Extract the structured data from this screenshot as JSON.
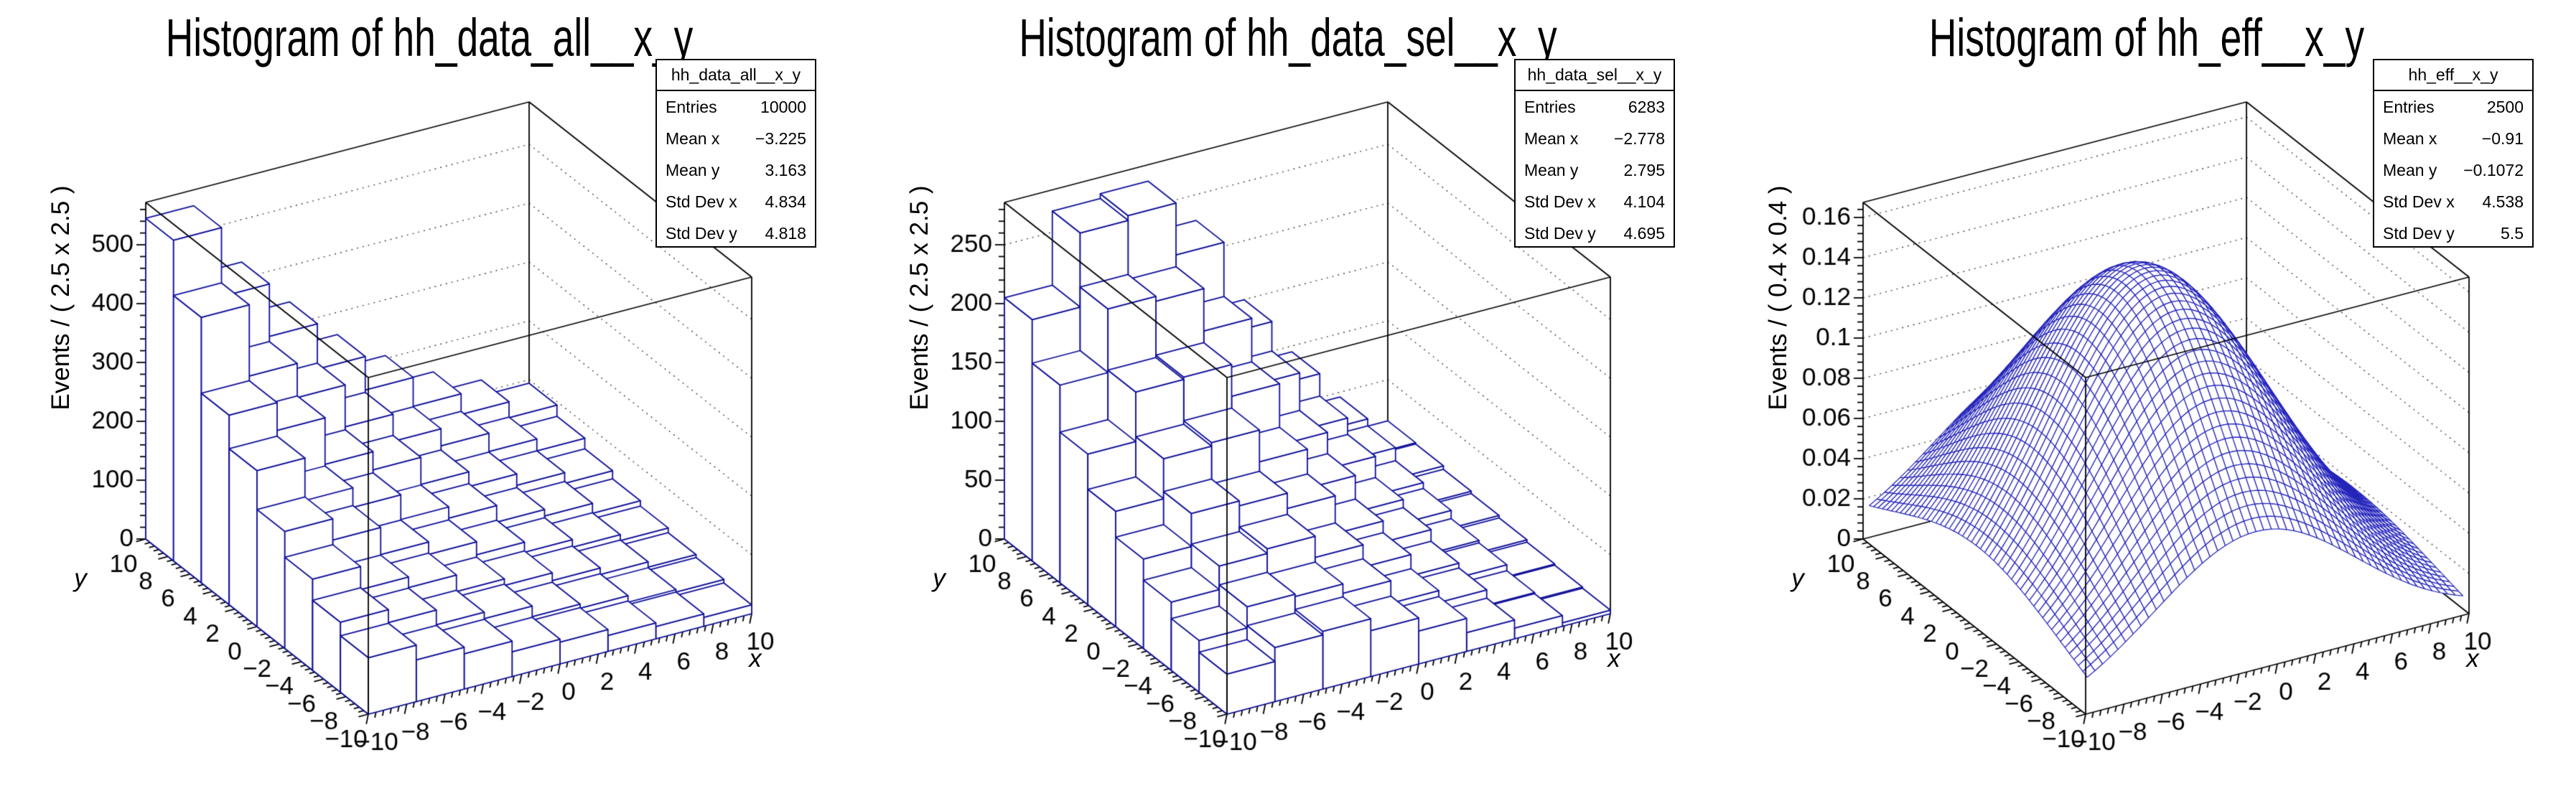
{
  "colors": {
    "bar_line": "#10109a",
    "mesh_line": "#2323bb",
    "frame": "#000000",
    "grid_dotted": "#444444",
    "text": "#000000",
    "background": "#ffffff"
  },
  "chart_data": [
    {
      "type": "lego3d",
      "title": "Histogram of hh_data_all__x_y",
      "stats": {
        "name": "hh_data_all__x_y",
        "rows": [
          {
            "label": "Entries",
            "value": "10000"
          },
          {
            "label": "Mean x",
            "value": "−3.225"
          },
          {
            "label": "Mean y",
            "value": "3.163"
          },
          {
            "label": "Std Dev x",
            "value": "4.834"
          },
          {
            "label": "Std Dev y",
            "value": "4.818"
          }
        ]
      },
      "x_axis": {
        "title": "x",
        "min": -10,
        "max": 10,
        "tick_values": [
          -10,
          -8,
          -6,
          -4,
          -2,
          0,
          2,
          4,
          6,
          8,
          10
        ],
        "tick_labels": [
          "−10",
          "−8",
          "−6",
          "−4",
          "−2",
          "0",
          "2",
          "4",
          "6",
          "8",
          "10"
        ],
        "minor_step": 0.4
      },
      "y_axis": {
        "title": "y",
        "min": -10,
        "max": 10,
        "tick_values": [
          -10,
          -8,
          -6,
          -4,
          -2,
          0,
          2,
          4,
          6,
          8,
          10
        ],
        "tick_labels": [
          "−10",
          "−8",
          "−6",
          "−4",
          "−2",
          "0",
          "2",
          "4",
          "6",
          "8",
          "10"
        ],
        "minor_step": 0.4
      },
      "z_axis": {
        "title": "Events / ( 2.5 x 2.5 )",
        "max": 572,
        "tick_values": [
          0,
          100,
          200,
          300,
          400,
          500
        ],
        "tick_labels": [
          "0",
          "100",
          "200",
          "300",
          "400",
          "500"
        ],
        "minor_step": 20
      },
      "bins": {
        "x": {
          "min": -10,
          "width": 2.5,
          "n": 8
        },
        "y": {
          "min": -10,
          "width": 2.5,
          "n": 8
        },
        "row_order": "y ascending from -10 (front) to +10 (back)",
        "col_order": "x ascending from -10 to +10",
        "values": [
          [
            96,
            71,
            60,
            42,
            37,
            27,
            21,
            15
          ],
          [
            119,
            97,
            72,
            61,
            43,
            36,
            25,
            21
          ],
          [
            155,
            116,
            98,
            70,
            59,
            46,
            35,
            26
          ],
          [
            199,
            163,
            117,
            96,
            74,
            57,
            44,
            34
          ],
          [
            265,
            193,
            160,
            118,
            99,
            71,
            60,
            43
          ],
          [
            322,
            275,
            196,
            165,
            119,
            94,
            75,
            57
          ],
          [
            451,
            330,
            272,
            201,
            155,
            126,
            95,
            75
          ],
          [
            545,
            428,
            339,
            262,
            205,
            156,
            121,
            94
          ]
        ]
      }
    },
    {
      "type": "lego3d",
      "title": "Histogram of hh_data_sel__x_y",
      "stats": {
        "name": "hh_data_sel__x_y",
        "rows": [
          {
            "label": "Entries",
            "value": "6283"
          },
          {
            "label": "Mean x",
            "value": "−2.778"
          },
          {
            "label": "Mean y",
            "value": "2.795"
          },
          {
            "label": "Std Dev x",
            "value": "4.104"
          },
          {
            "label": "Std Dev y",
            "value": "4.695"
          }
        ]
      },
      "x_axis": {
        "title": "x",
        "min": -10,
        "max": 10,
        "tick_values": [
          -10,
          -8,
          -6,
          -4,
          -2,
          0,
          2,
          4,
          6,
          8,
          10
        ],
        "tick_labels": [
          "−10",
          "−8",
          "−6",
          "−4",
          "−2",
          "0",
          "2",
          "4",
          "6",
          "8",
          "10"
        ],
        "minor_step": 0.4
      },
      "y_axis": {
        "title": "y",
        "min": -10,
        "max": 10,
        "tick_values": [
          -10,
          -8,
          -6,
          -4,
          -2,
          0,
          2,
          4,
          6,
          8,
          10
        ],
        "tick_labels": [
          "−10",
          "−8",
          "−6",
          "−4",
          "−2",
          "0",
          "2",
          "4",
          "6",
          "8",
          "10"
        ],
        "minor_step": 0.4
      },
      "z_axis": {
        "title": "Events / ( 2.5 x 2.5 )",
        "max": 286,
        "tick_values": [
          0,
          50,
          100,
          150,
          200,
          250
        ],
        "tick_labels": [
          "0",
          "50",
          "100",
          "150",
          "200",
          "250"
        ],
        "minor_step": 10
      },
      "bins": {
        "x": {
          "min": -10,
          "width": 2.5,
          "n": 8
        },
        "y": {
          "min": -10,
          "width": 2.5,
          "n": 8
        },
        "row_order": "y ascending from -10 (front) to +10 (back)",
        "col_order": "x ascending from -10 to +10",
        "values": [
          [
            34,
            46,
            49,
            39,
            28,
            16,
            9,
            3
          ],
          [
            44,
            62,
            60,
            52,
            33,
            23,
            10,
            4
          ],
          [
            58,
            78,
            82,
            64,
            45,
            27,
            15,
            5
          ],
          [
            76,
            104,
            100,
            87,
            55,
            37,
            17,
            7
          ],
          [
            98,
            132,
            135,
            108,
            75,
            44,
            24,
            9
          ],
          [
            128,
            170,
            172,
            145,
            93,
            62,
            29,
            11
          ],
          [
            168,
            222,
            218,
            182,
            125,
            76,
            40,
            14
          ],
          [
            205,
            268,
            272,
            228,
            150,
            95,
            46,
            15
          ]
        ]
      }
    },
    {
      "type": "surface3d",
      "title": "Histogram of hh_eff__x_y",
      "stats": {
        "name": "hh_eff__x_y",
        "rows": [
          {
            "label": "Entries",
            "value": "2500"
          },
          {
            "label": "Mean x",
            "value": "−0.91"
          },
          {
            "label": "Mean y",
            "value": "−0.1072"
          },
          {
            "label": "Std Dev x",
            "value": "4.538"
          },
          {
            "label": "Std Dev y",
            "value": "5.5"
          }
        ]
      },
      "x_axis": {
        "title": "x",
        "min": -10,
        "max": 10,
        "tick_values": [
          -10,
          -8,
          -6,
          -4,
          -2,
          0,
          2,
          4,
          6,
          8,
          10
        ],
        "tick_labels": [
          "−10",
          "−8",
          "−6",
          "−4",
          "−2",
          "0",
          "2",
          "4",
          "6",
          "8",
          "10"
        ],
        "minor_step": 0.4
      },
      "y_axis": {
        "title": "y",
        "min": -10,
        "max": 10,
        "tick_values": [
          -10,
          -8,
          -6,
          -4,
          -2,
          0,
          2,
          4,
          6,
          8,
          10
        ],
        "tick_labels": [
          "−10",
          "−8",
          "−6",
          "−4",
          "−2",
          "0",
          "2",
          "4",
          "6",
          "8",
          "10"
        ],
        "minor_step": 0.4
      },
      "z_axis": {
        "title": "Events / ( 0.4 x 0.4 )",
        "max": 0.1675,
        "tick_values": [
          0,
          0.02,
          0.04,
          0.06,
          0.08,
          0.1,
          0.12,
          0.14,
          0.16
        ],
        "tick_labels": [
          "0",
          "0.02",
          "0.04",
          "0.06",
          "0.08",
          "0.1",
          "0.12",
          "0.14",
          "0.16"
        ],
        "minor_step": 0.004
      },
      "surface": {
        "model": "gaussian2d",
        "amplitude": 0.155,
        "x0": -1.0,
        "sigma_x": 5.3,
        "y0": 0.0,
        "sigma_y": 7.6,
        "grid_n": 50,
        "grid_min": -9.8,
        "grid_step": 0.4,
        "peak_value": 0.155,
        "edge_value_x_minus10_y0": 0.037
      }
    }
  ]
}
